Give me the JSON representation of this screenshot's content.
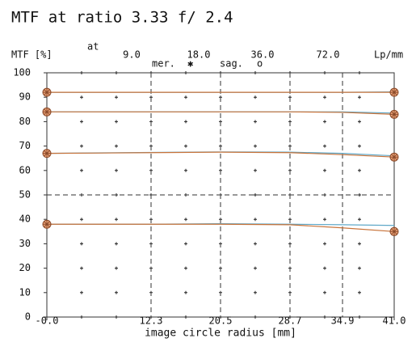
{
  "chart_data": {
    "type": "line",
    "title": "MTF at ratio 3.33   f/ 2.4",
    "ylabel": "MTF [%]",
    "xlabel": "image circle radius [mm]",
    "frequency_prefix": "at",
    "frequency_unit": "Lp/mm",
    "legend": {
      "mer": {
        "label": "mer.",
        "symbol": "✱",
        "color": "#c8733a"
      },
      "sag": {
        "label": "sag.",
        "symbol": "o",
        "color": "#5fa8c8"
      }
    },
    "x": [
      0,
      12.3,
      20.5,
      28.7,
      34.9,
      41
    ],
    "groups": [
      {
        "frequency": "9.0",
        "mer": [
          92,
          92,
          92,
          92,
          92,
          92
        ],
        "sag": [
          92,
          92,
          92,
          92,
          92,
          92.2
        ]
      },
      {
        "frequency": "18.0",
        "mer": [
          84,
          84,
          84,
          84,
          83.8,
          83
        ],
        "sag": [
          84,
          84,
          84,
          84,
          84,
          83.5
        ]
      },
      {
        "frequency": "36.0",
        "mer": [
          67,
          67.3,
          67.5,
          67.3,
          66.5,
          65.5
        ],
        "sag": [
          67,
          67.4,
          67.6,
          67.5,
          67,
          66
        ]
      },
      {
        "frequency": "72.0",
        "mer": [
          38,
          38,
          38,
          37.8,
          36.5,
          35
        ],
        "sag": [
          38,
          38,
          38.2,
          38,
          37.8,
          37.5
        ]
      }
    ],
    "xlim": [
      0,
      41
    ],
    "xticks": [
      {
        "value": 0,
        "label": "-0.0"
      },
      12.3,
      20.5,
      28.7,
      34.9,
      {
        "value": 41,
        "label": "41.0"
      }
    ],
    "ylim": [
      0,
      100
    ],
    "yticks": [
      0,
      10,
      20,
      30,
      40,
      50,
      60,
      70,
      80,
      90,
      100
    ]
  }
}
